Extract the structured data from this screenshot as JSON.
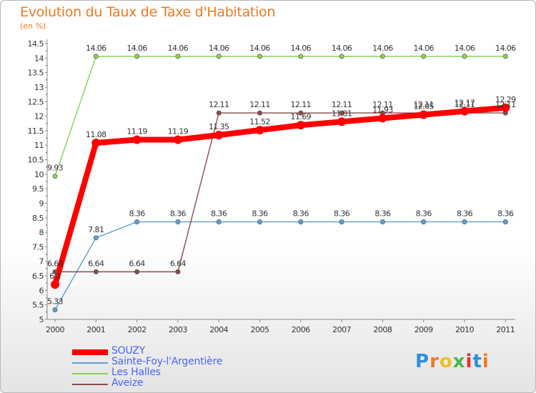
{
  "header": {
    "title": "Evolution du Taux de Taxe d'Habitation",
    "unit": "(en %)"
  },
  "brand": {
    "text": "Proxiti",
    "colors": [
      "#2f8ee3",
      "#f07a1e",
      "#f0c020",
      "#4db34d",
      "#e8302c",
      "#2f8ee3",
      "#f07a1e"
    ]
  },
  "chart_data": {
    "type": "line",
    "title": "Evolution du Taux de Taxe d'Habitation",
    "ylabel": "(en %)",
    "xlabel": "",
    "categories": [
      "2000",
      "2001",
      "2002",
      "2003",
      "2004",
      "2005",
      "2006",
      "2007",
      "2008",
      "2009",
      "2010",
      "2011"
    ],
    "ylim": [
      5,
      14.5
    ],
    "yticks": [
      "5",
      "5.5",
      "6",
      "6.5",
      "7",
      "7.5",
      "8",
      "8.5",
      "9",
      "9.5",
      "10",
      "10.5",
      "11",
      "11.5",
      "12",
      "12.5",
      "13",
      "13.5",
      "14",
      "14.5"
    ],
    "legend_position": "bottom-left",
    "series": [
      {
        "name": "Les Halles",
        "color": "#88d058",
        "style": "thin",
        "values": [
          9.93,
          14.06,
          14.06,
          14.06,
          14.06,
          14.06,
          14.06,
          14.06,
          14.06,
          14.06,
          14.06,
          14.06
        ],
        "labels": [
          "9.93",
          "14.06",
          "14.06",
          "14.06",
          "14.06",
          "14.06",
          "14.06",
          "14.06",
          "14.06",
          "14.06",
          "14.06",
          "14.06"
        ]
      },
      {
        "name": "Sainte-Foy-l'Argentière",
        "color": "#5b9fd3",
        "style": "thin",
        "values": [
          5.33,
          7.81,
          8.36,
          8.36,
          8.36,
          8.36,
          8.36,
          8.36,
          8.36,
          8.36,
          8.36,
          8.36
        ],
        "labels": [
          "5.33",
          "7.81",
          "8.36",
          "8.36",
          "8.36",
          "8.36",
          "8.36",
          "8.36",
          "8.36",
          "8.36",
          "8.36",
          "8.36"
        ]
      },
      {
        "name": "Aveize",
        "color": "#8b4a4a",
        "style": "thin",
        "values": [
          6.64,
          6.64,
          6.64,
          6.64,
          12.11,
          12.11,
          12.11,
          12.11,
          12.11,
          12.11,
          12.11,
          12.11
        ],
        "labels": [
          "6.64",
          "6.64",
          "6.64",
          "6.64",
          "12.11",
          "12.11",
          "12.11",
          "12.11",
          "12.11",
          "12.11",
          "12.11",
          "12.11"
        ]
      },
      {
        "name": "SOUZY",
        "color": "#ff0000",
        "style": "thick",
        "values": [
          6.2,
          11.08,
          11.19,
          11.19,
          11.35,
          11.52,
          11.69,
          11.81,
          11.93,
          12.05,
          12.17,
          12.29
        ],
        "labels": [
          "6.2",
          "11.08",
          "11.19",
          "11.19",
          "11.35",
          "11.52",
          "11.69",
          "11.81",
          "11.93",
          "12.05",
          "12.17",
          "12.29"
        ]
      }
    ],
    "legend": [
      {
        "name": "SOUZY",
        "color": "#ff0000",
        "style": "thick"
      },
      {
        "name": "Sainte-Foy-l'Argentière",
        "color": "#5b9fd3",
        "style": "thin"
      },
      {
        "name": "Les Halles",
        "color": "#88d058",
        "style": "thin"
      },
      {
        "name": "Aveize",
        "color": "#8b4a4a",
        "style": "thin"
      }
    ]
  }
}
